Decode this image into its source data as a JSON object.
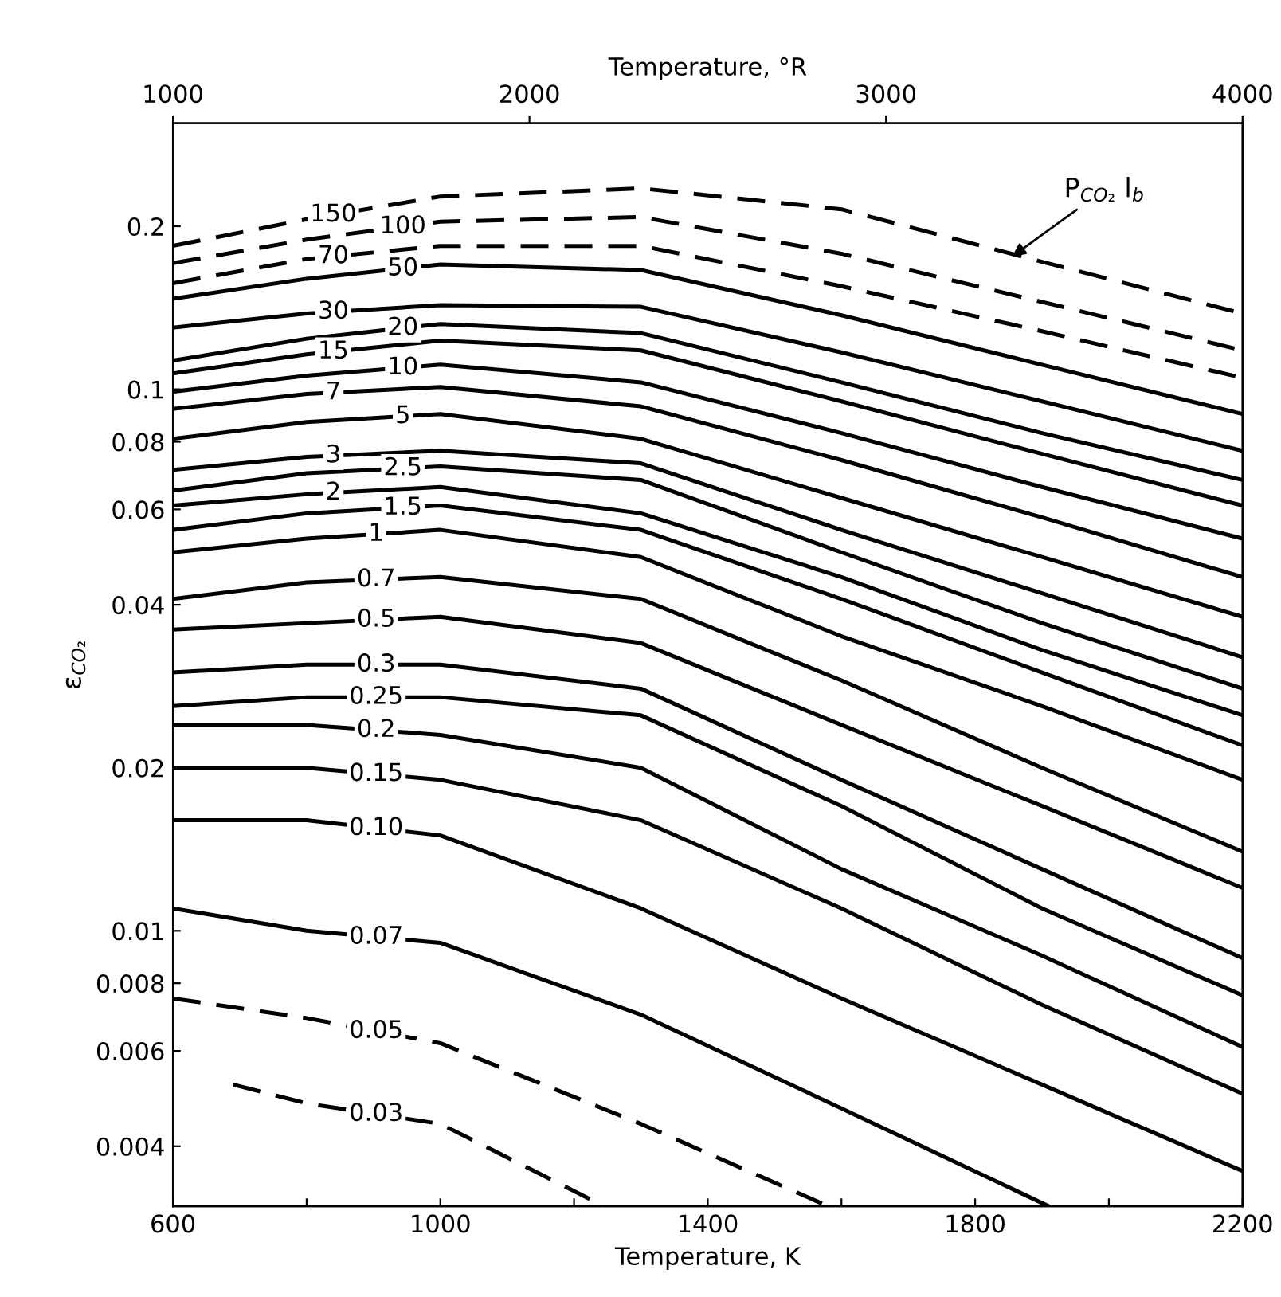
{
  "chart_data": {
    "type": "line",
    "xlabel": "Temperature, K",
    "x2label": "Temperature, °R",
    "ylabel": "ε$_{CO₂}$",
    "log": "y",
    "xlim": [
      600,
      2200
    ],
    "xticks": [
      600,
      {
        "value": 800,
        "label": null
      },
      1000,
      {
        "value": 1200,
        "label": null
      },
      1400,
      {
        "value": 1600,
        "label": null
      },
      1800,
      {
        "value": 2000,
        "label": null
      },
      2200
    ],
    "x2lim": [
      1000,
      4000
    ],
    "x2ticks": [
      1000,
      2000,
      3000,
      4000
    ],
    "ylim": [
      0.0031,
      0.31
    ],
    "yticks": [
      0.004,
      0.006,
      0.008,
      0.01,
      0.02,
      0.04,
      0.06,
      0.08,
      0.1,
      0.2
    ],
    "grid": false,
    "marker": "none",
    "x": [
      600,
      800,
      1000,
      1300,
      1600,
      1900,
      2200
    ],
    "series": [
      {
        "name": "150",
        "color": "#000000",
        "line_style": "dashed",
        "values": [
          0.184,
          0.206,
          0.227,
          0.235,
          0.215,
          0.172,
          0.138
        ]
      },
      {
        "name": "100",
        "color": "#000000",
        "line_style": "dashed",
        "values": [
          0.171,
          0.189,
          0.204,
          0.208,
          0.178,
          0.145,
          0.118
        ]
      },
      {
        "name": "70",
        "color": "#000000",
        "line_style": "dashed",
        "values": [
          0.157,
          0.174,
          0.184,
          0.184,
          0.155,
          0.128,
          0.105
        ]
      },
      {
        "name": "50",
        "color": "#000000",
        "line_style": "solid",
        "values": [
          0.147,
          0.16,
          0.17,
          0.166,
          0.137,
          0.111,
          0.09
        ]
      },
      {
        "name": "30",
        "color": "#000000",
        "line_style": "solid",
        "values": [
          0.13,
          0.138,
          0.143,
          0.142,
          0.117,
          0.095,
          0.077
        ]
      },
      {
        "name": "20",
        "color": "#000000",
        "line_style": "solid",
        "values": [
          0.113,
          0.124,
          0.132,
          0.127,
          0.103,
          0.083,
          0.068
        ]
      },
      {
        "name": "15",
        "color": "#000000",
        "line_style": "solid",
        "values": [
          0.107,
          0.116,
          0.123,
          0.118,
          0.095,
          0.076,
          0.061
        ]
      },
      {
        "name": "10",
        "color": "#000000",
        "line_style": "solid",
        "values": [
          0.099,
          0.106,
          0.111,
          0.103,
          0.083,
          0.066,
          0.053
        ]
      },
      {
        "name": "7",
        "color": "#000000",
        "line_style": "solid",
        "values": [
          0.092,
          0.098,
          0.101,
          0.093,
          0.074,
          0.058,
          0.045
        ]
      },
      {
        "name": "5",
        "color": "#000000",
        "line_style": "solid",
        "values": [
          0.081,
          0.087,
          0.09,
          0.081,
          0.063,
          0.049,
          0.038
        ]
      },
      {
        "name": "3",
        "color": "#000000",
        "line_style": "solid",
        "values": [
          0.071,
          0.075,
          0.077,
          0.073,
          0.055,
          0.042,
          0.032
        ]
      },
      {
        "name": "2.5",
        "color": "#000000",
        "line_style": "solid",
        "values": [
          0.065,
          0.07,
          0.072,
          0.068,
          0.05,
          0.037,
          0.028
        ]
      },
      {
        "name": "2",
        "color": "#000000",
        "line_style": "solid",
        "values": [
          0.061,
          0.064,
          0.066,
          0.059,
          0.045,
          0.033,
          0.025
        ]
      },
      {
        "name": "1.5",
        "color": "#000000",
        "line_style": "solid",
        "values": [
          0.055,
          0.059,
          0.061,
          0.055,
          0.041,
          0.03,
          0.022
        ]
      },
      {
        "name": "1",
        "color": "#000000",
        "line_style": "solid",
        "values": [
          0.05,
          0.053,
          0.055,
          0.049,
          0.035,
          0.026,
          0.019
        ]
      },
      {
        "name": "0.7",
        "color": "#000000",
        "line_style": "solid",
        "values": [
          0.041,
          0.044,
          0.045,
          0.041,
          0.029,
          0.02,
          0.014
        ]
      },
      {
        "name": "0.5",
        "color": "#000000",
        "line_style": "solid",
        "values": [
          0.036,
          0.037,
          0.038,
          0.034,
          0.024,
          0.017,
          0.012
        ]
      },
      {
        "name": "0.3",
        "color": "#000000",
        "line_style": "solid",
        "values": [
          0.03,
          0.031,
          0.031,
          0.028,
          0.019,
          0.013,
          0.0089
        ]
      },
      {
        "name": "0.25",
        "color": "#000000",
        "line_style": "solid",
        "values": [
          0.026,
          0.027,
          0.027,
          0.025,
          0.017,
          0.011,
          0.0076
        ]
      },
      {
        "name": "0.2",
        "color": "#000000",
        "line_style": "solid",
        "values": [
          0.024,
          0.024,
          0.023,
          0.02,
          0.013,
          0.009,
          0.0061
        ]
      },
      {
        "name": "0.15",
        "color": "#000000",
        "line_style": "solid",
        "values": [
          0.02,
          0.02,
          0.019,
          0.016,
          0.011,
          0.0073,
          0.005
        ]
      },
      {
        "name": "0.10",
        "color": "#000000",
        "line_style": "solid",
        "values": [
          0.016,
          0.016,
          0.015,
          0.011,
          0.0075,
          0.0052,
          0.0036
        ]
      },
      {
        "name": "0.07",
        "color": "#000000",
        "line_style": "solid",
        "x": [
          600,
          800,
          1000,
          1300,
          1600,
          1910
        ],
        "values": [
          0.011,
          0.01,
          0.0095,
          0.007,
          0.0047,
          0.0031
        ]
      },
      {
        "name": "0.05",
        "color": "#000000",
        "line_style": "dashed",
        "x": [
          600,
          800,
          1000,
          1300,
          1580
        ],
        "values": [
          0.0075,
          0.0069,
          0.0062,
          0.0044,
          0.0031
        ]
      },
      {
        "name": "0.03",
        "color": "#000000",
        "line_style": "dashed",
        "x": [
          690,
          800,
          1000,
          1245
        ],
        "values": [
          0.0052,
          0.0048,
          0.0044,
          0.0031
        ]
      }
    ],
    "annotations": [
      {
        "text": "P$_{CO₂}$ l$_{b}$",
        "x": 1850,
        "y": 0.174
      }
    ]
  }
}
